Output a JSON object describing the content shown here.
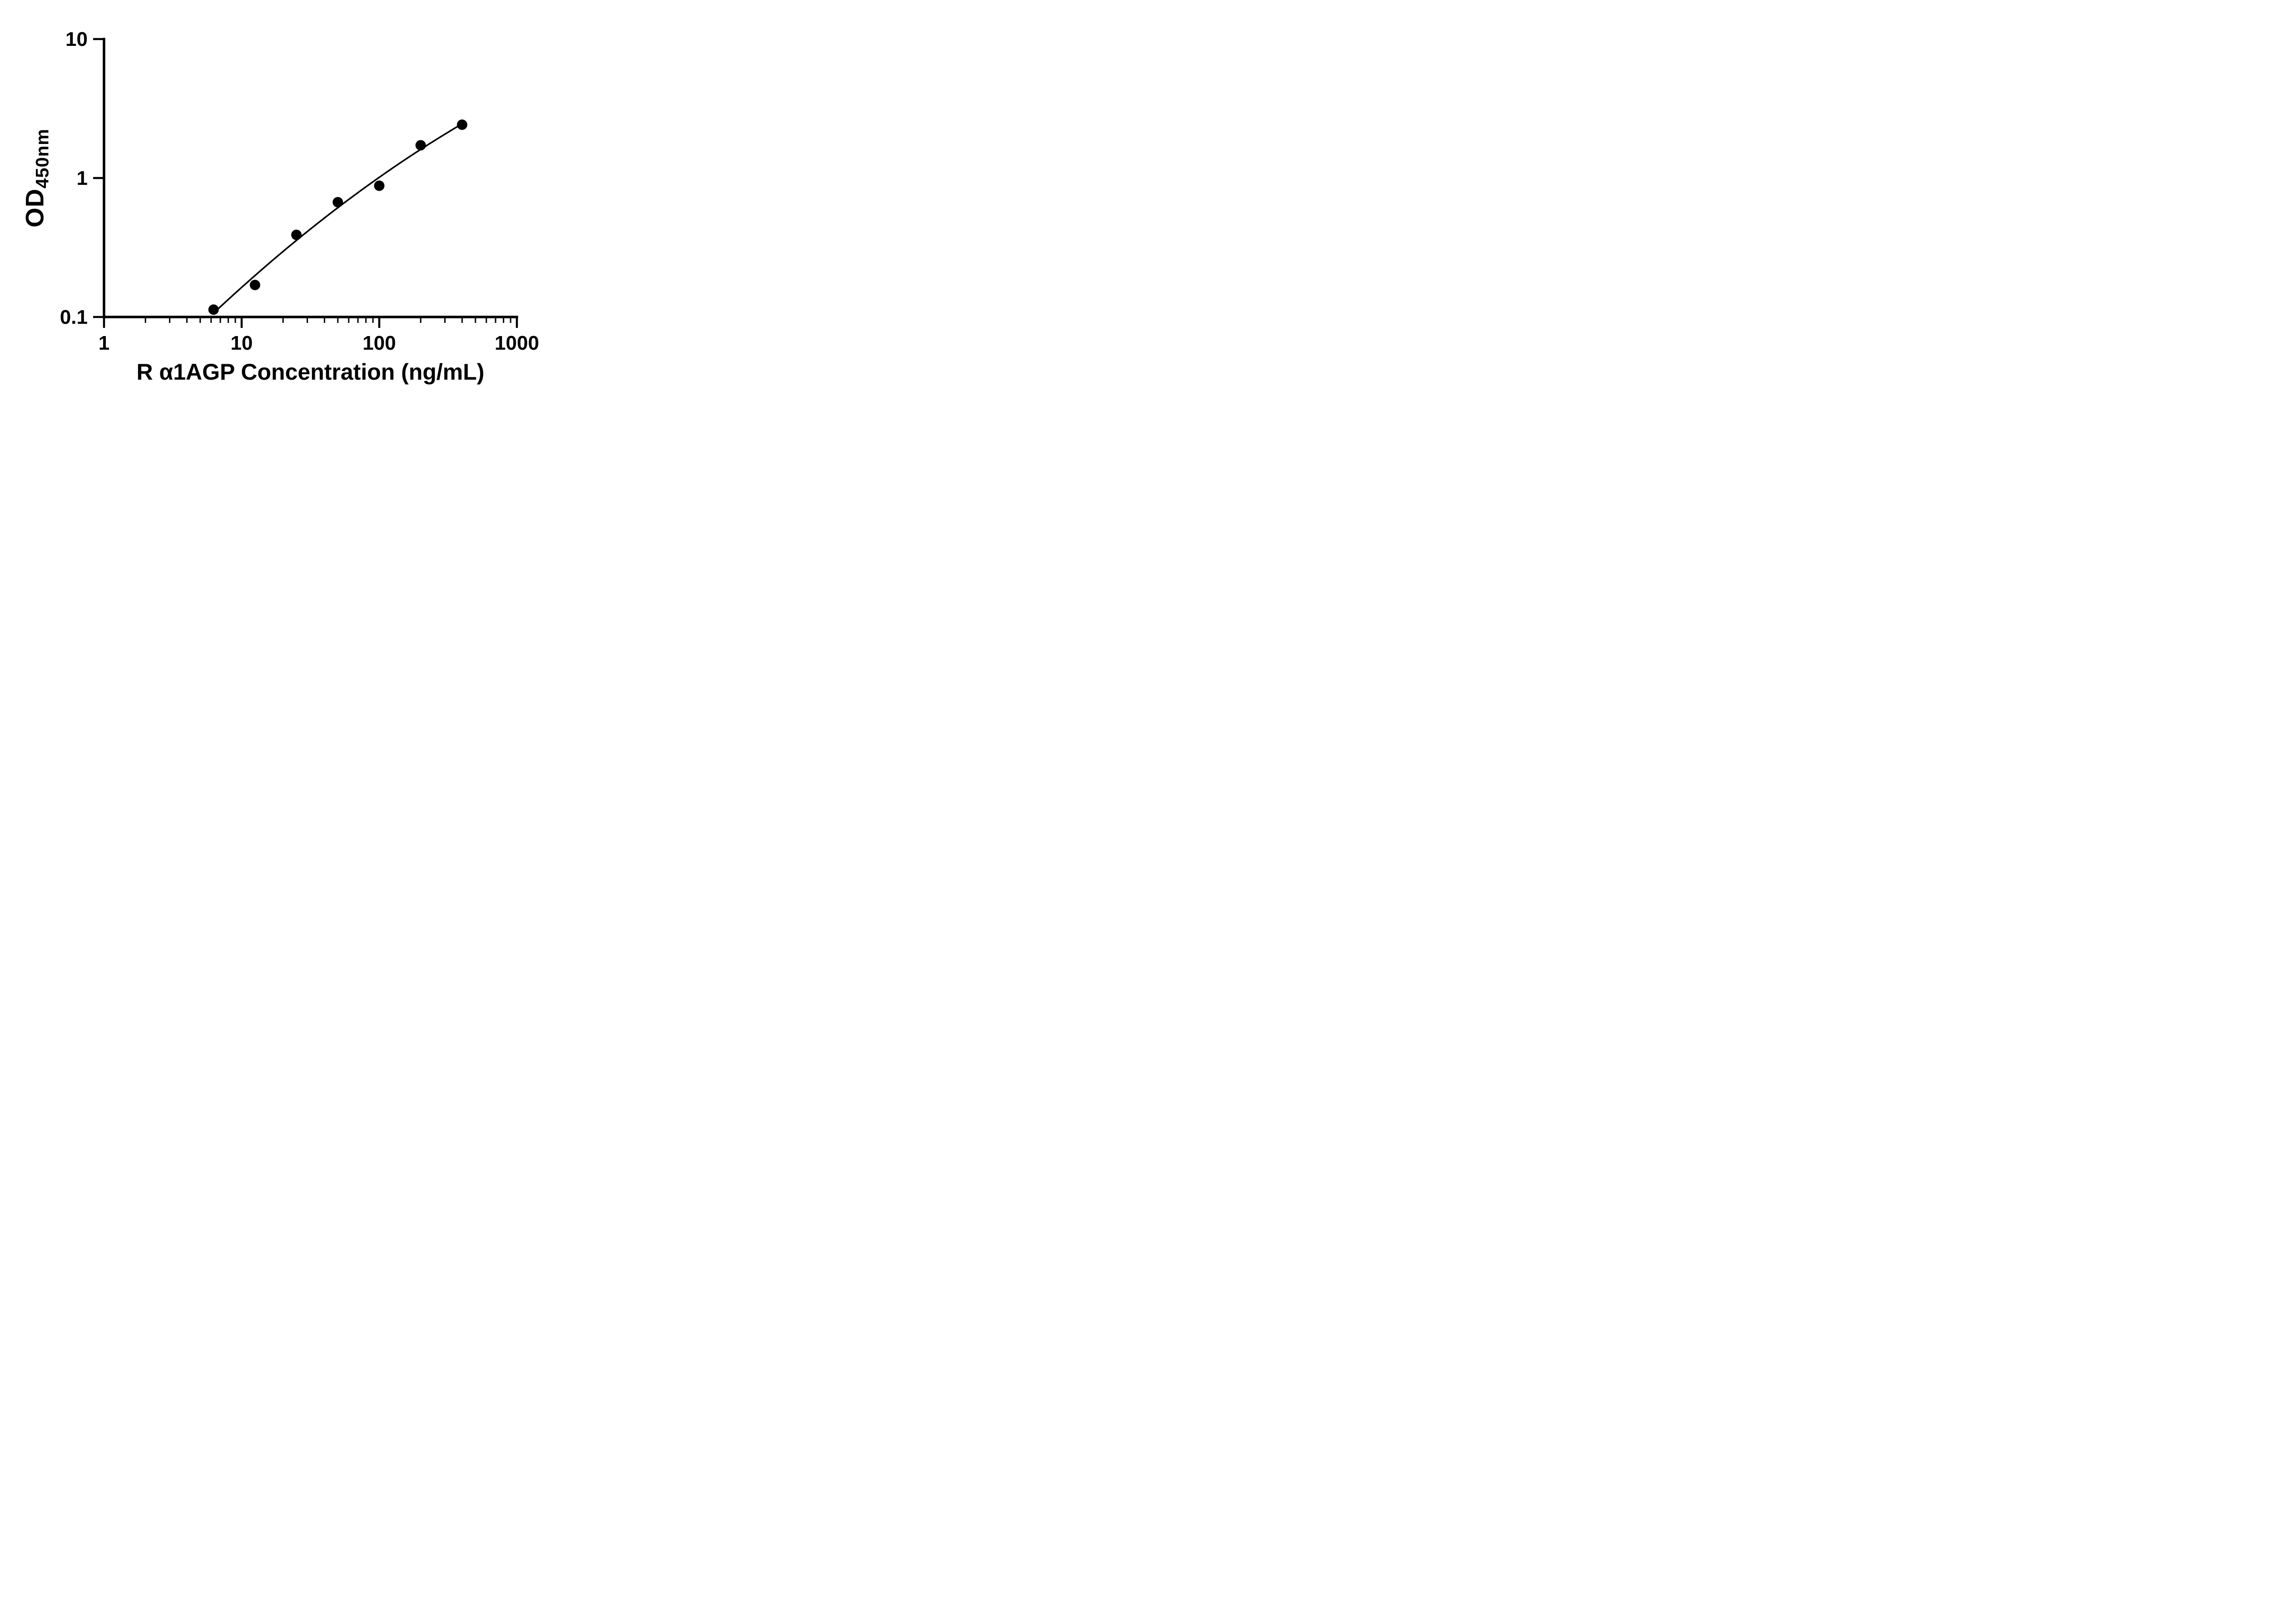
{
  "colors": {
    "foreground": "#000000",
    "background": "#ffffff"
  },
  "chart_data": {
    "type": "scatter",
    "title": "",
    "xlabel": "R α1AGP Concentration (ng/mL)",
    "ylabel": "OD",
    "ylabel_sub": "450nm",
    "x_scale": "log",
    "y_scale": "log",
    "xlim": [
      1,
      1000
    ],
    "ylim": [
      0.1,
      10
    ],
    "x_ticks": [
      1,
      10,
      100,
      1000
    ],
    "x_tick_labels": [
      "1",
      "10",
      "100",
      "1000"
    ],
    "y_ticks": [
      0.1,
      1,
      10
    ],
    "y_tick_labels": [
      "0.1",
      "1",
      "10"
    ],
    "x_minor_ticks": "log",
    "grid": false,
    "legend": false,
    "marker": "filled-circle",
    "marker_color": "#000000",
    "line_color": "#000000",
    "fit_curve": true,
    "series": [
      {
        "points": [
          {
            "x": 6.25,
            "y": 0.113
          },
          {
            "x": 12.5,
            "y": 0.17
          },
          {
            "x": 25,
            "y": 0.39
          },
          {
            "x": 50,
            "y": 0.67
          },
          {
            "x": 100,
            "y": 0.88
          },
          {
            "x": 200,
            "y": 1.72
          },
          {
            "x": 400,
            "y": 2.42
          }
        ]
      }
    ]
  }
}
